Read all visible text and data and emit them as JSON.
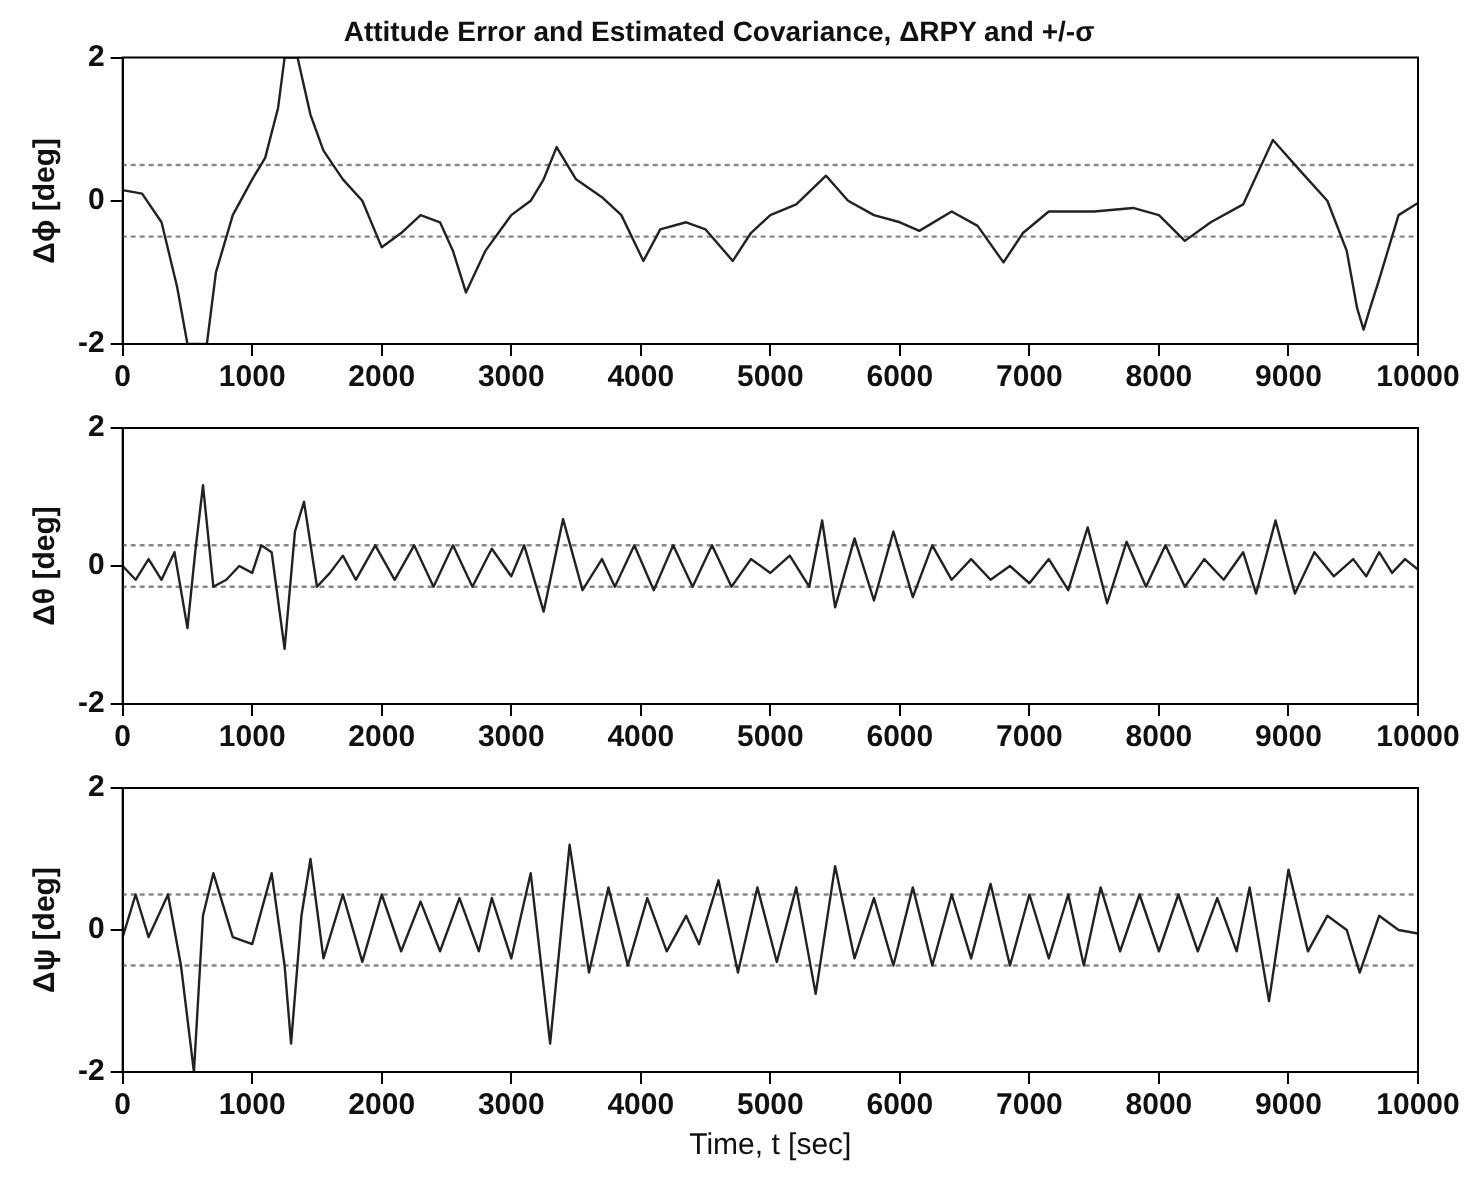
{
  "chart_data": [
    {
      "type": "line",
      "title": "Attitude Error and Estimated Covariance, ΔRPY and +/-σ",
      "ylabel": "Δϕ [deg]",
      "xlim": [
        0,
        10000
      ],
      "xticks": [
        0,
        1000,
        2000,
        3000,
        4000,
        5000,
        6000,
        7000,
        8000,
        9000,
        10000
      ],
      "ylim": [
        -2,
        2
      ],
      "yticks": [
        -2,
        0,
        2
      ],
      "series": [
        {
          "color": "#222222",
          "x": [
            0,
            150,
            300,
            420,
            500,
            650,
            720,
            850,
            1000,
            1100,
            1200,
            1250,
            1350,
            1450,
            1550,
            1700,
            1850,
            2000,
            2150,
            2300,
            2450,
            2550,
            2650,
            2800,
            3000,
            3150,
            3250,
            3350,
            3500,
            3700,
            3850,
            4020,
            4150,
            4350,
            4500,
            4710,
            4850,
            5000,
            5200,
            5430,
            5600,
            5800,
            6000,
            6150,
            6400,
            6600,
            6800,
            6950,
            7150,
            7500,
            7800,
            8000,
            8200,
            8400,
            8650,
            8880,
            9100,
            9300,
            9450,
            9530,
            9580,
            9630,
            9700,
            9850,
            10000
          ],
          "values": [
            0.15,
            0.1,
            -0.3,
            -1.2,
            -2,
            -2,
            -1.0,
            -0.2,
            0.3,
            0.6,
            1.3,
            2,
            2,
            1.2,
            0.7,
            0.3,
            0.0,
            -0.65,
            -0.45,
            -0.2,
            -0.3,
            -0.7,
            -1.28,
            -0.7,
            -0.2,
            0.0,
            0.3,
            0.75,
            0.3,
            0.05,
            -0.2,
            -0.84,
            -0.4,
            -0.3,
            -0.4,
            -0.84,
            -0.45,
            -0.2,
            -0.05,
            0.35,
            0.0,
            -0.2,
            -0.3,
            -0.42,
            -0.15,
            -0.35,
            -0.86,
            -0.45,
            -0.15,
            -0.15,
            -0.1,
            -0.2,
            -0.56,
            -0.3,
            -0.05,
            0.85,
            0.4,
            0.0,
            -0.7,
            -1.5,
            -1.8,
            -1.5,
            -1.1,
            -0.2,
            -0.03
          ]
        },
        {
          "color": "#888888",
          "line_style": "dotted",
          "x": [
            0,
            10000
          ],
          "values": [
            0.5,
            0.5
          ]
        },
        {
          "color": "#888888",
          "line_style": "dotted",
          "x": [
            0,
            10000
          ],
          "values": [
            -0.5,
            -0.5
          ]
        }
      ]
    },
    {
      "type": "line",
      "ylabel": "Δθ [deg]",
      "xlim": [
        0,
        10000
      ],
      "xticks": [
        0,
        1000,
        2000,
        3000,
        4000,
        5000,
        6000,
        7000,
        8000,
        9000,
        10000
      ],
      "ylim": [
        -2,
        2
      ],
      "yticks": [
        -2,
        0,
        2
      ],
      "series": [
        {
          "color": "#222222",
          "x": [
            0,
            100,
            200,
            300,
            400,
            500,
            560,
            620,
            700,
            800,
            900,
            1000,
            1070,
            1150,
            1250,
            1330,
            1400,
            1500,
            1600,
            1700,
            1800,
            1950,
            2100,
            2250,
            2400,
            2550,
            2700,
            2850,
            3000,
            3100,
            3250,
            3400,
            3550,
            3700,
            3800,
            3950,
            4100,
            4250,
            4400,
            4550,
            4700,
            4850,
            5000,
            5150,
            5300,
            5400,
            5500,
            5650,
            5800,
            5950,
            6100,
            6250,
            6400,
            6550,
            6700,
            6850,
            7000,
            7150,
            7300,
            7450,
            7600,
            7750,
            7900,
            8050,
            8200,
            8350,
            8500,
            8650,
            8750,
            8900,
            9050,
            9200,
            9350,
            9500,
            9600,
            9700,
            9800,
            9900,
            10000
          ],
          "values": [
            0,
            -0.2,
            0.1,
            -0.2,
            0.2,
            -0.9,
            0.2,
            1.17,
            -0.3,
            -0.2,
            0.0,
            -0.1,
            0.3,
            0.2,
            -1.2,
            0.5,
            0.93,
            -0.3,
            -0.1,
            0.15,
            -0.2,
            0.3,
            -0.2,
            0.3,
            -0.3,
            0.3,
            -0.3,
            0.25,
            -0.15,
            0.3,
            -0.66,
            0.68,
            -0.35,
            0.1,
            -0.3,
            0.3,
            -0.35,
            0.3,
            -0.3,
            0.3,
            -0.3,
            0.1,
            -0.1,
            0.15,
            -0.3,
            0.66,
            -0.6,
            0.4,
            -0.5,
            0.5,
            -0.45,
            0.3,
            -0.2,
            0.1,
            -0.2,
            0.0,
            -0.25,
            0.1,
            -0.35,
            0.56,
            -0.54,
            0.35,
            -0.3,
            0.3,
            -0.3,
            0.1,
            -0.2,
            0.2,
            -0.4,
            0.66,
            -0.4,
            0.2,
            -0.15,
            0.1,
            -0.15,
            0.2,
            -0.1,
            0.1,
            -0.05
          ]
        },
        {
          "color": "#888888",
          "line_style": "dotted",
          "x": [
            0,
            10000
          ],
          "values": [
            0.3,
            0.3
          ]
        },
        {
          "color": "#888888",
          "line_style": "dotted",
          "x": [
            0,
            10000
          ],
          "values": [
            -0.3,
            -0.3
          ]
        }
      ]
    },
    {
      "type": "line",
      "ylabel": "Δψ [deg]",
      "xlabel": "Time, t [sec]",
      "xlim": [
        0,
        10000
      ],
      "xticks": [
        0,
        1000,
        2000,
        3000,
        4000,
        5000,
        6000,
        7000,
        8000,
        9000,
        10000
      ],
      "ylim": [
        -2,
        2
      ],
      "yticks": [
        -2,
        0,
        2
      ],
      "series": [
        {
          "color": "#222222",
          "x": [
            0,
            100,
            200,
            350,
            450,
            550,
            620,
            700,
            850,
            1000,
            1150,
            1250,
            1300,
            1380,
            1450,
            1550,
            1700,
            1850,
            2000,
            2150,
            2300,
            2450,
            2600,
            2750,
            2850,
            3000,
            3150,
            3300,
            3450,
            3600,
            3750,
            3900,
            4050,
            4200,
            4350,
            4450,
            4600,
            4750,
            4900,
            5050,
            5200,
            5350,
            5500,
            5650,
            5800,
            5950,
            6100,
            6250,
            6400,
            6550,
            6700,
            6850,
            7000,
            7150,
            7300,
            7420,
            7550,
            7700,
            7850,
            8000,
            8150,
            8300,
            8450,
            8600,
            8700,
            8850,
            9000,
            9150,
            9300,
            9450,
            9550,
            9700,
            9850,
            10000
          ],
          "values": [
            -0.1,
            0.5,
            -0.1,
            0.5,
            -0.5,
            -2,
            0.2,
            0.8,
            -0.1,
            -0.2,
            0.8,
            -0.5,
            -1.6,
            0.2,
            1.0,
            -0.4,
            0.5,
            -0.45,
            0.5,
            -0.3,
            0.4,
            -0.3,
            0.45,
            -0.3,
            0.45,
            -0.4,
            0.8,
            -1.6,
            1.2,
            -0.6,
            0.6,
            -0.5,
            0.45,
            -0.3,
            0.2,
            -0.2,
            0.7,
            -0.6,
            0.6,
            -0.45,
            0.6,
            -0.9,
            0.9,
            -0.4,
            0.45,
            -0.5,
            0.6,
            -0.5,
            0.5,
            -0.4,
            0.65,
            -0.5,
            0.5,
            -0.4,
            0.5,
            -0.5,
            0.6,
            -0.3,
            0.5,
            -0.3,
            0.5,
            -0.3,
            0.45,
            -0.3,
            0.6,
            -1.0,
            0.85,
            -0.3,
            0.2,
            0.0,
            -0.6,
            0.2,
            0.0,
            -0.05
          ]
        },
        {
          "color": "#888888",
          "line_style": "dotted",
          "x": [
            0,
            10000
          ],
          "values": [
            0.5,
            0.5
          ]
        },
        {
          "color": "#888888",
          "line_style": "dotted",
          "x": [
            0,
            10000
          ],
          "values": [
            -0.5,
            -0.5
          ]
        }
      ]
    }
  ]
}
